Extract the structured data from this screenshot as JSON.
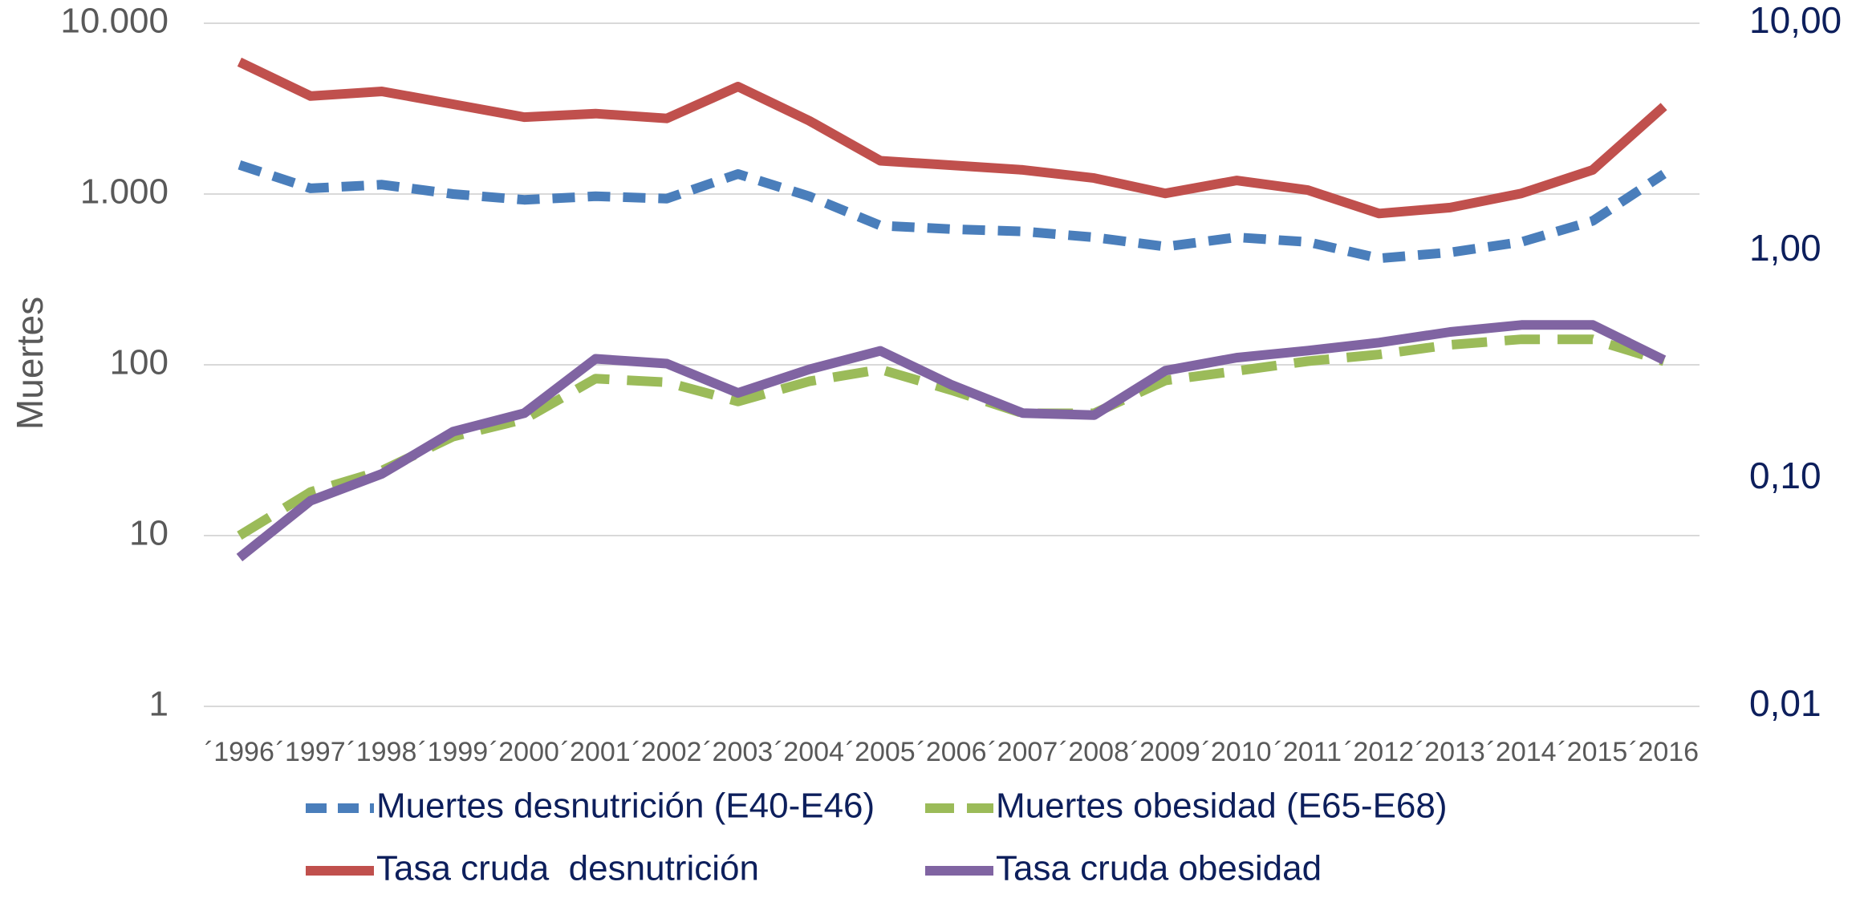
{
  "chart_data": {
    "type": "line",
    "y_label": "Muertes",
    "categories": [
      "´1996",
      "´1997",
      "´1998",
      "´1999",
      "´2000",
      "´2001",
      "´2002",
      "´2003",
      "´2004",
      "´2005",
      "´2006",
      "´2007",
      "´2008",
      "´2009",
      "´2010",
      "´2011",
      "´2012",
      "´2013",
      "´2014",
      "´2015",
      "´2016"
    ],
    "log_scale": true,
    "grid": true,
    "legend": "bottom",
    "ylim": [
      1,
      10000
    ],
    "yticks": [
      1,
      10,
      100,
      {
        "value": 1000,
        "label": "1.000"
      },
      {
        "value": 10000,
        "label": "10.000"
      }
    ],
    "y2lim": [
      0.01,
      10
    ],
    "y2ticks": [
      {
        "value": 0.01,
        "label": "0,01"
      },
      {
        "value": 0.1,
        "label": "0,10"
      },
      {
        "value": 1,
        "label": "1,00"
      },
      {
        "value": 10,
        "label": "10,00"
      }
    ],
    "series": [
      {
        "name": "Muertes desnutrición (E40-E46)",
        "color": "#4a7ebb",
        "dashed": true,
        "axis": "y",
        "values": [
          1480,
          1080,
          1135,
          1000,
          925,
          970,
          940,
          1310,
          970,
          653,
          623,
          604,
          558,
          492,
          558,
          524,
          420,
          455,
          524,
          696,
          1310
        ]
      },
      {
        "name": "Muertes obesidad (E65-E68)",
        "color": "#9bbb59",
        "dashed": true,
        "axis": "y",
        "values": [
          10,
          18,
          24,
          38,
          48,
          83,
          79,
          61,
          80,
          94,
          71,
          52,
          52,
          81,
          92,
          105,
          115,
          131,
          141,
          141,
          105
        ]
      },
      {
        "name": "Tasa cruda  desnutrición",
        "color": "#c0504d",
        "dashed": false,
        "axis": "y2",
        "values": [
          6.76,
          4.79,
          5.02,
          4.41,
          3.87,
          4.01,
          3.82,
          5.27,
          3.73,
          2.49,
          2.38,
          2.27,
          2.09,
          1.79,
          2.04,
          1.85,
          1.46,
          1.55,
          1.79,
          2.27,
          4.31
        ]
      },
      {
        "name": "Tasa cruda obesidad",
        "color": "#8064a2",
        "dashed": false,
        "axis": "y2",
        "values": [
          0.045,
          0.08,
          0.105,
          0.161,
          0.194,
          0.336,
          0.32,
          0.238,
          0.302,
          0.364,
          0.258,
          0.194,
          0.19,
          0.298,
          0.34,
          0.365,
          0.396,
          0.441,
          0.473,
          0.473,
          0.332
        ]
      }
    ]
  }
}
